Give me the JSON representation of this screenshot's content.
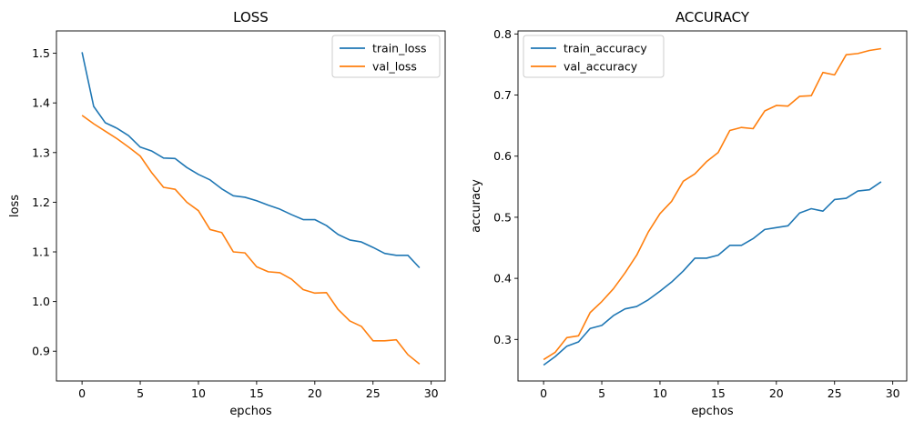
{
  "chart_data": [
    {
      "type": "line",
      "title": "LOSS",
      "xlabel": "epchos",
      "ylabel": "loss",
      "xlim": [
        -2.2,
        31.2
      ],
      "ylim": [
        0.84,
        1.545
      ],
      "xticks": [
        0,
        5,
        10,
        15,
        20,
        25,
        30
      ],
      "yticks": [
        0.9,
        1.0,
        1.1,
        1.2,
        1.3,
        1.4,
        1.5
      ],
      "ytick_labels": [
        "0.9",
        "1.0",
        "1.1",
        "1.2",
        "1.3",
        "1.4",
        "1.5"
      ],
      "grid": false,
      "legend_position": "upper right",
      "x": [
        0,
        1,
        2,
        3,
        4,
        5,
        6,
        7,
        8,
        9,
        10,
        11,
        12,
        13,
        14,
        15,
        16,
        17,
        18,
        19,
        20,
        21,
        22,
        23,
        24,
        25,
        26,
        27,
        28,
        29
      ],
      "series": [
        {
          "name": "train_loss",
          "color": "#1f77b4",
          "values": [
            1.502,
            1.393,
            1.36,
            1.349,
            1.334,
            1.311,
            1.303,
            1.289,
            1.288,
            1.27,
            1.256,
            1.245,
            1.227,
            1.213,
            1.21,
            1.203,
            1.194,
            1.186,
            1.175,
            1.165,
            1.165,
            1.153,
            1.135,
            1.124,
            1.12,
            1.109,
            1.097,
            1.093,
            1.093,
            1.068
          ]
        },
        {
          "name": "val_loss",
          "color": "#ff7f0e",
          "values": [
            1.375,
            1.358,
            1.343,
            1.328,
            1.311,
            1.293,
            1.259,
            1.23,
            1.226,
            1.2,
            1.183,
            1.145,
            1.139,
            1.1,
            1.098,
            1.07,
            1.06,
            1.058,
            1.045,
            1.024,
            1.017,
            1.018,
            0.984,
            0.961,
            0.95,
            0.921,
            0.921,
            0.923,
            0.893,
            0.874
          ]
        }
      ]
    },
    {
      "type": "line",
      "title": "ACCURACY",
      "xlabel": "epchos",
      "ylabel": "accuracy",
      "xlim": [
        -2.2,
        31.2
      ],
      "ylim": [
        0.232,
        0.805
      ],
      "xticks": [
        0,
        5,
        10,
        15,
        20,
        25,
        30
      ],
      "yticks": [
        0.3,
        0.4,
        0.5,
        0.6,
        0.7,
        0.8
      ],
      "ytick_labels": [
        "0.3",
        "0.4",
        "0.5",
        "0.6",
        "0.7",
        "0.8"
      ],
      "grid": false,
      "legend_position": "upper left",
      "x": [
        0,
        1,
        2,
        3,
        4,
        5,
        6,
        7,
        8,
        9,
        10,
        11,
        12,
        13,
        14,
        15,
        16,
        17,
        18,
        19,
        20,
        21,
        22,
        23,
        24,
        25,
        26,
        27,
        28,
        29
      ],
      "series": [
        {
          "name": "train_accuracy",
          "color": "#1f77b4",
          "values": [
            0.258,
            0.272,
            0.289,
            0.296,
            0.318,
            0.323,
            0.339,
            0.35,
            0.354,
            0.365,
            0.379,
            0.394,
            0.412,
            0.433,
            0.433,
            0.438,
            0.454,
            0.454,
            0.465,
            0.48,
            0.483,
            0.486,
            0.507,
            0.514,
            0.51,
            0.529,
            0.531,
            0.543,
            0.545,
            0.558
          ]
        },
        {
          "name": "val_accuracy",
          "color": "#ff7f0e",
          "values": [
            0.267,
            0.279,
            0.303,
            0.306,
            0.344,
            0.362,
            0.383,
            0.409,
            0.438,
            0.476,
            0.506,
            0.526,
            0.559,
            0.571,
            0.591,
            0.606,
            0.642,
            0.647,
            0.645,
            0.674,
            0.683,
            0.682,
            0.698,
            0.699,
            0.737,
            0.733,
            0.766,
            0.768,
            0.773,
            0.776
          ]
        }
      ]
    }
  ]
}
